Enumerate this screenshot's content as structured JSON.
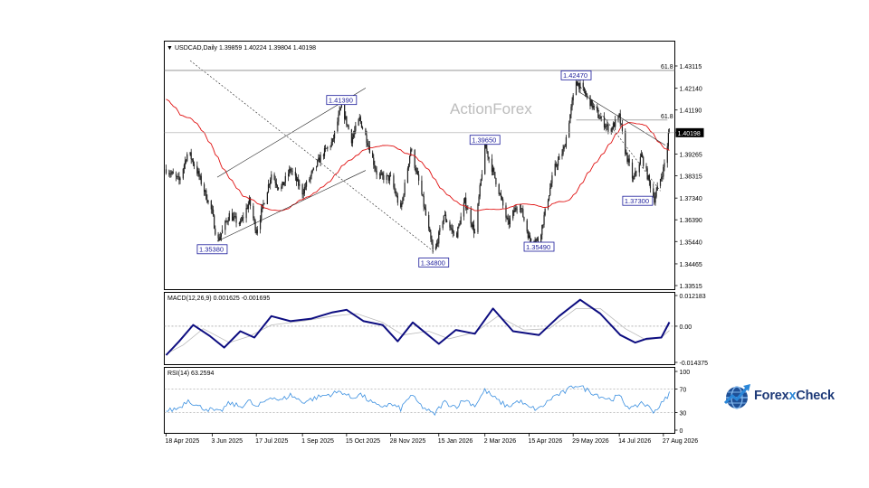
{
  "header": {
    "symbol_line": "USDCAD,Daily  1.39859 1.40224 1.39804 1.40198"
  },
  "watermark": "ActionForex",
  "brand": {
    "name_a": "Forex",
    "name_x": "x",
    "name_b": "Check",
    "color": "#1e3a78",
    "accent": "#2a86d8"
  },
  "colors": {
    "candles": "#1f1f1f",
    "ma": "#e01010",
    "macd": "#0d0d80",
    "signal": "#bbbbbb",
    "rsi": "#3a8fe0",
    "fib": "#888888",
    "box": "#1a1a9a"
  },
  "chart_data": [
    {
      "type": "candlestick",
      "title": "USDCAD,Daily  1.39859 1.40224 1.39804 1.40198",
      "ohlc_last": {
        "open": 1.39859,
        "high": 1.40224,
        "low": 1.39804,
        "close": 1.40198
      },
      "ylim": [
        1.33515,
        1.43115
      ],
      "y_ticks": [
        "1.43115",
        "1.42140",
        "1.41190",
        "1.40198",
        "1.39265",
        "1.38315",
        "1.37340",
        "1.36390",
        "1.35440",
        "1.34465",
        "1.33515"
      ],
      "x_ticks": [
        "18 Apr 2025",
        "3 Jun 2025",
        "17 Jul 2025",
        "1 Sep 2025",
        "15 Oct 2025",
        "28 Nov 2025",
        "15 Jan 2026",
        "2 Mar 2026",
        "15 Apr 2026",
        "29 May 2026",
        "14 Jul 2026",
        "27 Aug 2026"
      ],
      "overlays": [
        "55-day moving average"
      ],
      "fib_labels": [
        "61.8",
        "61.8"
      ],
      "annotations": [
        {
          "text": "1.35380",
          "date": "2025-06-03",
          "price": 1.3538
        },
        {
          "text": "1.41390",
          "date": "2025-10-10",
          "price": 1.4139
        },
        {
          "text": "1.34800",
          "date": "2026-01-10",
          "price": 1.348
        },
        {
          "text": "1.39650",
          "date": "2026-03-02",
          "price": 1.3965
        },
        {
          "text": "1.35490",
          "date": "2026-04-25",
          "price": 1.3549
        },
        {
          "text": "1.42470",
          "date": "2026-06-01",
          "price": 1.4247
        },
        {
          "text": "1.37300",
          "date": "2026-08-18",
          "price": 1.373
        }
      ],
      "close_path": [
        [
          "2025-04-18",
          1.386
        ],
        [
          "2025-05-01",
          1.381
        ],
        [
          "2025-05-10",
          1.394
        ],
        [
          "2025-05-20",
          1.384
        ],
        [
          "2025-06-03",
          1.367
        ],
        [
          "2025-06-08",
          1.354
        ],
        [
          "2025-06-20",
          1.366
        ],
        [
          "2025-07-01",
          1.362
        ],
        [
          "2025-07-10",
          1.372
        ],
        [
          "2025-07-17",
          1.359
        ],
        [
          "2025-08-01",
          1.384
        ],
        [
          "2025-08-10",
          1.377
        ],
        [
          "2025-08-20",
          1.386
        ],
        [
          "2025-09-01",
          1.376
        ],
        [
          "2025-09-20",
          1.392
        ],
        [
          "2025-10-01",
          1.398
        ],
        [
          "2025-10-10",
          1.4139
        ],
        [
          "2025-10-20",
          1.399
        ],
        [
          "2025-10-28",
          1.408
        ],
        [
          "2025-11-05",
          1.398
        ],
        [
          "2025-11-15",
          1.383
        ],
        [
          "2025-11-28",
          1.382
        ],
        [
          "2025-12-08",
          1.368
        ],
        [
          "2025-12-18",
          1.395
        ],
        [
          "2025-12-28",
          1.377
        ],
        [
          "2026-01-10",
          1.348
        ],
        [
          "2026-01-20",
          1.366
        ],
        [
          "2026-02-01",
          1.356
        ],
        [
          "2026-02-10",
          1.372
        ],
        [
          "2026-02-20",
          1.358
        ],
        [
          "2026-03-02",
          1.3965
        ],
        [
          "2026-03-15",
          1.378
        ],
        [
          "2026-03-25",
          1.362
        ],
        [
          "2026-04-05",
          1.372
        ],
        [
          "2026-04-15",
          1.356
        ],
        [
          "2026-04-25",
          1.3549
        ],
        [
          "2026-05-10",
          1.386
        ],
        [
          "2026-05-20",
          1.395
        ],
        [
          "2026-06-01",
          1.4247
        ],
        [
          "2026-06-10",
          1.419
        ],
        [
          "2026-06-25",
          1.408
        ],
        [
          "2026-07-05",
          1.403
        ],
        [
          "2026-07-14",
          1.409
        ],
        [
          "2026-07-20",
          1.394
        ],
        [
          "2026-07-28",
          1.381
        ],
        [
          "2026-08-05",
          1.392
        ],
        [
          "2026-08-18",
          1.373
        ],
        [
          "2026-08-27",
          1.386
        ],
        [
          "2026-09-02",
          1.40198
        ]
      ]
    },
    {
      "type": "line",
      "title": "MACD(12,26,9) 0.001625 -0.001695",
      "ylim": [
        -0.014375,
        0.012183
      ],
      "y_ticks": [
        "0.012183",
        "0.00",
        "-0.014375"
      ],
      "series": [
        {
          "name": "MACD",
          "values": [
            [
              "2025-04-18",
              -0.0115
            ],
            [
              "2025-05-01",
              -0.006
            ],
            [
              "2025-05-15",
              0.0005
            ],
            [
              "2025-06-01",
              -0.004
            ],
            [
              "2025-06-15",
              -0.0085
            ],
            [
              "2025-07-01",
              -0.002
            ],
            [
              "2025-07-15",
              -0.0045
            ],
            [
              "2025-08-01",
              0.004
            ],
            [
              "2025-08-20",
              0.002
            ],
            [
              "2025-09-10",
              0.003
            ],
            [
              "2025-10-01",
              0.0055
            ],
            [
              "2025-10-15",
              0.0065
            ],
            [
              "2025-11-01",
              0.002
            ],
            [
              "2025-11-20",
              0.0005
            ],
            [
              "2025-12-05",
              -0.006
            ],
            [
              "2025-12-20",
              0.0015
            ],
            [
              "2026-01-15",
              -0.007
            ],
            [
              "2026-02-01",
              -0.0015
            ],
            [
              "2026-02-20",
              -0.003
            ],
            [
              "2026-03-10",
              0.007
            ],
            [
              "2026-03-30",
              -0.002
            ],
            [
              "2026-04-25",
              -0.0035
            ],
            [
              "2026-05-15",
              0.004
            ],
            [
              "2026-06-05",
              0.0105
            ],
            [
              "2026-06-25",
              0.005
            ],
            [
              "2026-07-15",
              -0.0035
            ],
            [
              "2026-07-30",
              -0.0065
            ],
            [
              "2026-08-10",
              -0.005
            ],
            [
              "2026-08-25",
              -0.0045
            ],
            [
              "2026-09-02",
              0.0016
            ]
          ]
        },
        {
          "name": "Signal",
          "values": [
            [
              "2025-04-18",
              -0.011
            ],
            [
              "2025-05-05",
              -0.0075
            ],
            [
              "2025-05-25",
              -0.001
            ],
            [
              "2025-06-20",
              -0.0065
            ],
            [
              "2025-07-10",
              -0.004
            ],
            [
              "2025-08-01",
              0.0005
            ],
            [
              "2025-09-01",
              0.002
            ],
            [
              "2025-10-01",
              0.004
            ],
            [
              "2025-10-25",
              0.005
            ],
            [
              "2025-11-20",
              0.0015
            ],
            [
              "2025-12-10",
              -0.0035
            ],
            [
              "2026-01-05",
              -0.002
            ],
            [
              "2026-01-25",
              -0.005
            ],
            [
              "2026-02-20",
              -0.0025
            ],
            [
              "2026-03-15",
              0.004
            ],
            [
              "2026-04-10",
              -0.0015
            ],
            [
              "2026-05-05",
              -0.001
            ],
            [
              "2026-06-01",
              0.007
            ],
            [
              "2026-06-25",
              0.007
            ],
            [
              "2026-07-20",
              -0.001
            ],
            [
              "2026-08-10",
              -0.0055
            ],
            [
              "2026-08-25",
              -0.0045
            ],
            [
              "2026-09-02",
              -0.0017
            ]
          ]
        }
      ]
    },
    {
      "type": "line",
      "title": "RSI(14) 63.2594",
      "ylim": [
        0,
        100
      ],
      "y_ticks": [
        "100",
        "70",
        "30",
        "0"
      ],
      "series": [
        {
          "name": "RSI(14)",
          "values": [
            [
              "2025-04-18",
              32
            ],
            [
              "2025-05-01",
              38
            ],
            [
              "2025-05-10",
              52
            ],
            [
              "2025-05-20",
              40
            ],
            [
              "2025-06-03",
              34
            ],
            [
              "2025-06-10",
              30
            ],
            [
              "2025-06-20",
              46
            ],
            [
              "2025-07-01",
              40
            ],
            [
              "2025-07-10",
              50
            ],
            [
              "2025-07-17",
              38
            ],
            [
              "2025-08-01",
              58
            ],
            [
              "2025-08-10",
              50
            ],
            [
              "2025-08-20",
              60
            ],
            [
              "2025-09-01",
              48
            ],
            [
              "2025-09-20",
              58
            ],
            [
              "2025-10-01",
              62
            ],
            [
              "2025-10-10",
              66
            ],
            [
              "2025-10-20",
              54
            ],
            [
              "2025-10-28",
              62
            ],
            [
              "2025-11-05",
              52
            ],
            [
              "2025-11-15",
              40
            ],
            [
              "2025-11-28",
              44
            ],
            [
              "2025-12-08",
              36
            ],
            [
              "2025-12-18",
              60
            ],
            [
              "2025-12-28",
              42
            ],
            [
              "2026-01-10",
              26
            ],
            [
              "2026-01-20",
              48
            ],
            [
              "2026-02-01",
              40
            ],
            [
              "2026-02-10",
              52
            ],
            [
              "2026-02-20",
              42
            ],
            [
              "2026-03-02",
              68
            ],
            [
              "2026-03-15",
              50
            ],
            [
              "2026-03-25",
              40
            ],
            [
              "2026-04-05",
              50
            ],
            [
              "2026-04-15",
              38
            ],
            [
              "2026-04-25",
              36
            ],
            [
              "2026-05-10",
              58
            ],
            [
              "2026-05-20",
              64
            ],
            [
              "2026-06-01",
              78
            ],
            [
              "2026-06-10",
              70
            ],
            [
              "2026-06-25",
              58
            ],
            [
              "2026-07-05",
              52
            ],
            [
              "2026-07-14",
              58
            ],
            [
              "2026-07-20",
              44
            ],
            [
              "2026-07-28",
              36
            ],
            [
              "2026-08-05",
              48
            ],
            [
              "2026-08-18",
              32
            ],
            [
              "2026-08-27",
              48
            ],
            [
              "2026-09-02",
              63.2594
            ]
          ]
        }
      ]
    }
  ]
}
